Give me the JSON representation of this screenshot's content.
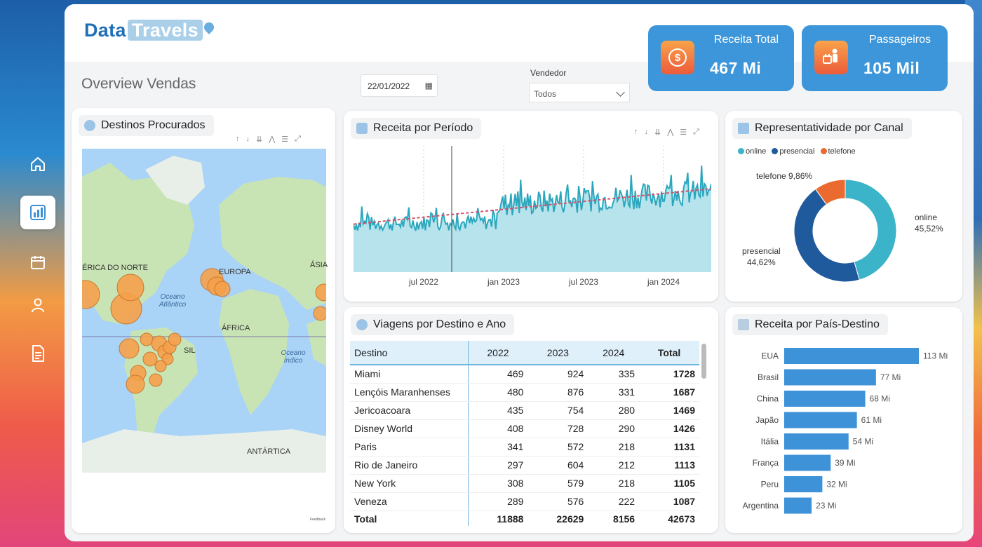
{
  "app": {
    "logo_part1": "Data",
    "logo_part2": "Travels"
  },
  "header": {
    "page_title": "Overview Vendas",
    "date_value": "22/01/2022",
    "vendor_label": "Vendedor",
    "vendor_value": "Todos"
  },
  "kpis": [
    {
      "label": "Receita Total",
      "value": "467 Mi",
      "icon": "money-icon",
      "symbol": "$"
    },
    {
      "label": "Passageiros",
      "value": "105 Mil",
      "icon": "passenger-luggage-icon"
    }
  ],
  "sidebar": {
    "items": [
      {
        "name": "home-icon",
        "active": false
      },
      {
        "name": "bar-chart-icon",
        "active": true
      },
      {
        "name": "calendar-icon",
        "active": false
      },
      {
        "name": "user-icon",
        "active": false
      },
      {
        "name": "document-icon",
        "active": false
      }
    ]
  },
  "map": {
    "title": "Destinos Procurados",
    "labels": {
      "north_america": "ÉRICA DO NORTE",
      "europe": "EUROPA",
      "asia": "ÁSIA",
      "africa": "ÁFRICA",
      "atlantic": "Oceano Atlântico",
      "indian": "Oceano Índico",
      "antarctica": "ANTÁRTICA",
      "brazil": "SIL"
    },
    "feedback_label": "Feedback"
  },
  "line_chart": {
    "title": "Receita por Período",
    "x_ticks": [
      "jul 2022",
      "jan 2023",
      "jul 2023",
      "jan 2024"
    ]
  },
  "donut": {
    "title": "Representatividade por Canal",
    "slices": [
      {
        "name": "online",
        "value": 45.52,
        "color": "#3bb3c8",
        "label": "online",
        "pct": "45,52%"
      },
      {
        "name": "presencial",
        "value": 44.62,
        "color": "#1f5a9c",
        "label": "presencial",
        "pct": "44,62%"
      },
      {
        "name": "telefone",
        "value": 9.86,
        "color": "#ea6a30",
        "label": "telefone 9,86%"
      }
    ]
  },
  "table": {
    "title": "Viagens por Destino e Ano",
    "headers": [
      "Destino",
      "2022",
      "2023",
      "2024",
      "Total"
    ],
    "rows": [
      [
        "Miami",
        "469",
        "924",
        "335",
        "1728"
      ],
      [
        "Lençóis Maranhenses",
        "480",
        "876",
        "331",
        "1687"
      ],
      [
        "Jericoacoara",
        "435",
        "754",
        "280",
        "1469"
      ],
      [
        "Disney World",
        "408",
        "728",
        "290",
        "1426"
      ],
      [
        "Paris",
        "341",
        "572",
        "218",
        "1131"
      ],
      [
        "Rio de Janeiro",
        "297",
        "604",
        "212",
        "1113"
      ],
      [
        "New York",
        "308",
        "579",
        "218",
        "1105"
      ],
      [
        "Veneza",
        "289",
        "576",
        "222",
        "1087"
      ]
    ],
    "total_row": [
      "Total",
      "11888",
      "22629",
      "8156",
      "42673"
    ]
  },
  "bar_chart": {
    "title": "Receita por País-Destino"
  },
  "chart_data": [
    {
      "type": "bar",
      "title": "Receita por País-Destino",
      "orientation": "horizontal",
      "categories": [
        "EUA",
        "Brasil",
        "China",
        "Japão",
        "Itália",
        "França",
        "Peru",
        "Argentina"
      ],
      "values": [
        113,
        77,
        68,
        61,
        54,
        39,
        32,
        23
      ],
      "labels": [
        "113 Mi",
        "77 Mi",
        "68 Mi",
        "61 Mi",
        "54 Mi",
        "39 Mi",
        "32 Mi",
        "23 Mi"
      ],
      "color": "#3d92d8"
    },
    {
      "type": "pie",
      "title": "Representatividade por Canal",
      "categories": [
        "online",
        "presencial",
        "telefone"
      ],
      "values": [
        45.52,
        44.62,
        9.86
      ]
    },
    {
      "type": "line",
      "title": "Receita por Período",
      "x_ticks": [
        "jul 2022",
        "jan 2023",
        "jul 2023",
        "jan 2024"
      ],
      "trend_line": true,
      "color": "#2aa7bd"
    }
  ]
}
